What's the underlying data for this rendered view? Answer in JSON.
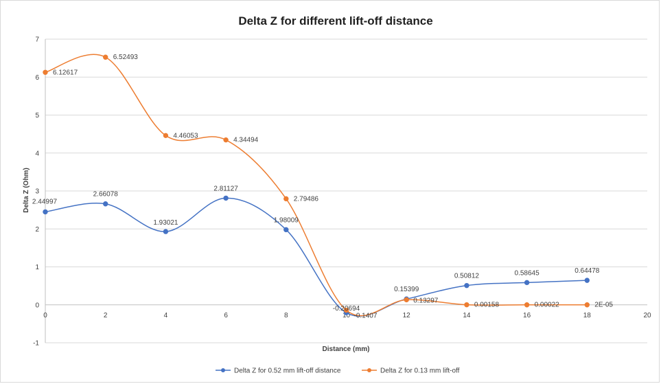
{
  "chart_data": {
    "type": "line",
    "title": "Delta Z for different lift-off distance",
    "xlabel": "Distance (mm)",
    "ylabel": "Delta Z (Ohm)",
    "xlim": [
      0,
      20
    ],
    "ylim": [
      -1,
      7
    ],
    "x_ticks": [
      "0",
      "2",
      "4",
      "6",
      "8",
      "10",
      "12",
      "14",
      "16",
      "18",
      "20"
    ],
    "y_ticks": [
      "-1",
      "0",
      "1",
      "2",
      "3",
      "4",
      "5",
      "6",
      "7"
    ],
    "grid": "horizontal",
    "legend_position": "bottom",
    "smooth": true,
    "series": [
      {
        "name": "Delta Z for 0.52 mm lift-off distance",
        "color": "#4472c4",
        "x": [
          0,
          2,
          4,
          6,
          8,
          10,
          12,
          14,
          16,
          18
        ],
        "y": [
          2.44997,
          2.66078,
          1.93021,
          2.81127,
          1.98009,
          -0.20694,
          0.15399,
          0.50812,
          0.58645,
          0.64478
        ],
        "labels": [
          "2.44997",
          "2.66078",
          "1.93021",
          "2.81127",
          "1.98009",
          "-0.20694",
          "0.15399",
          "0.50812",
          "0.58645",
          "0.64478"
        ]
      },
      {
        "name": "Delta Z for 0.13 mm lift-off",
        "color": "#ed7d31",
        "x": [
          0,
          2,
          4,
          6,
          8,
          10,
          12,
          14,
          16,
          18
        ],
        "y": [
          6.12617,
          6.52493,
          4.46053,
          4.34494,
          2.79486,
          -0.1407,
          0.13297,
          0.00158,
          0.00022,
          2e-05
        ],
        "labels": [
          "6.12617",
          "6.52493",
          "4.46053",
          "4.34494",
          "2.79486",
          "-0.1407",
          "0.13297",
          "0.00158",
          "0.00022",
          "2E-05"
        ]
      }
    ]
  }
}
